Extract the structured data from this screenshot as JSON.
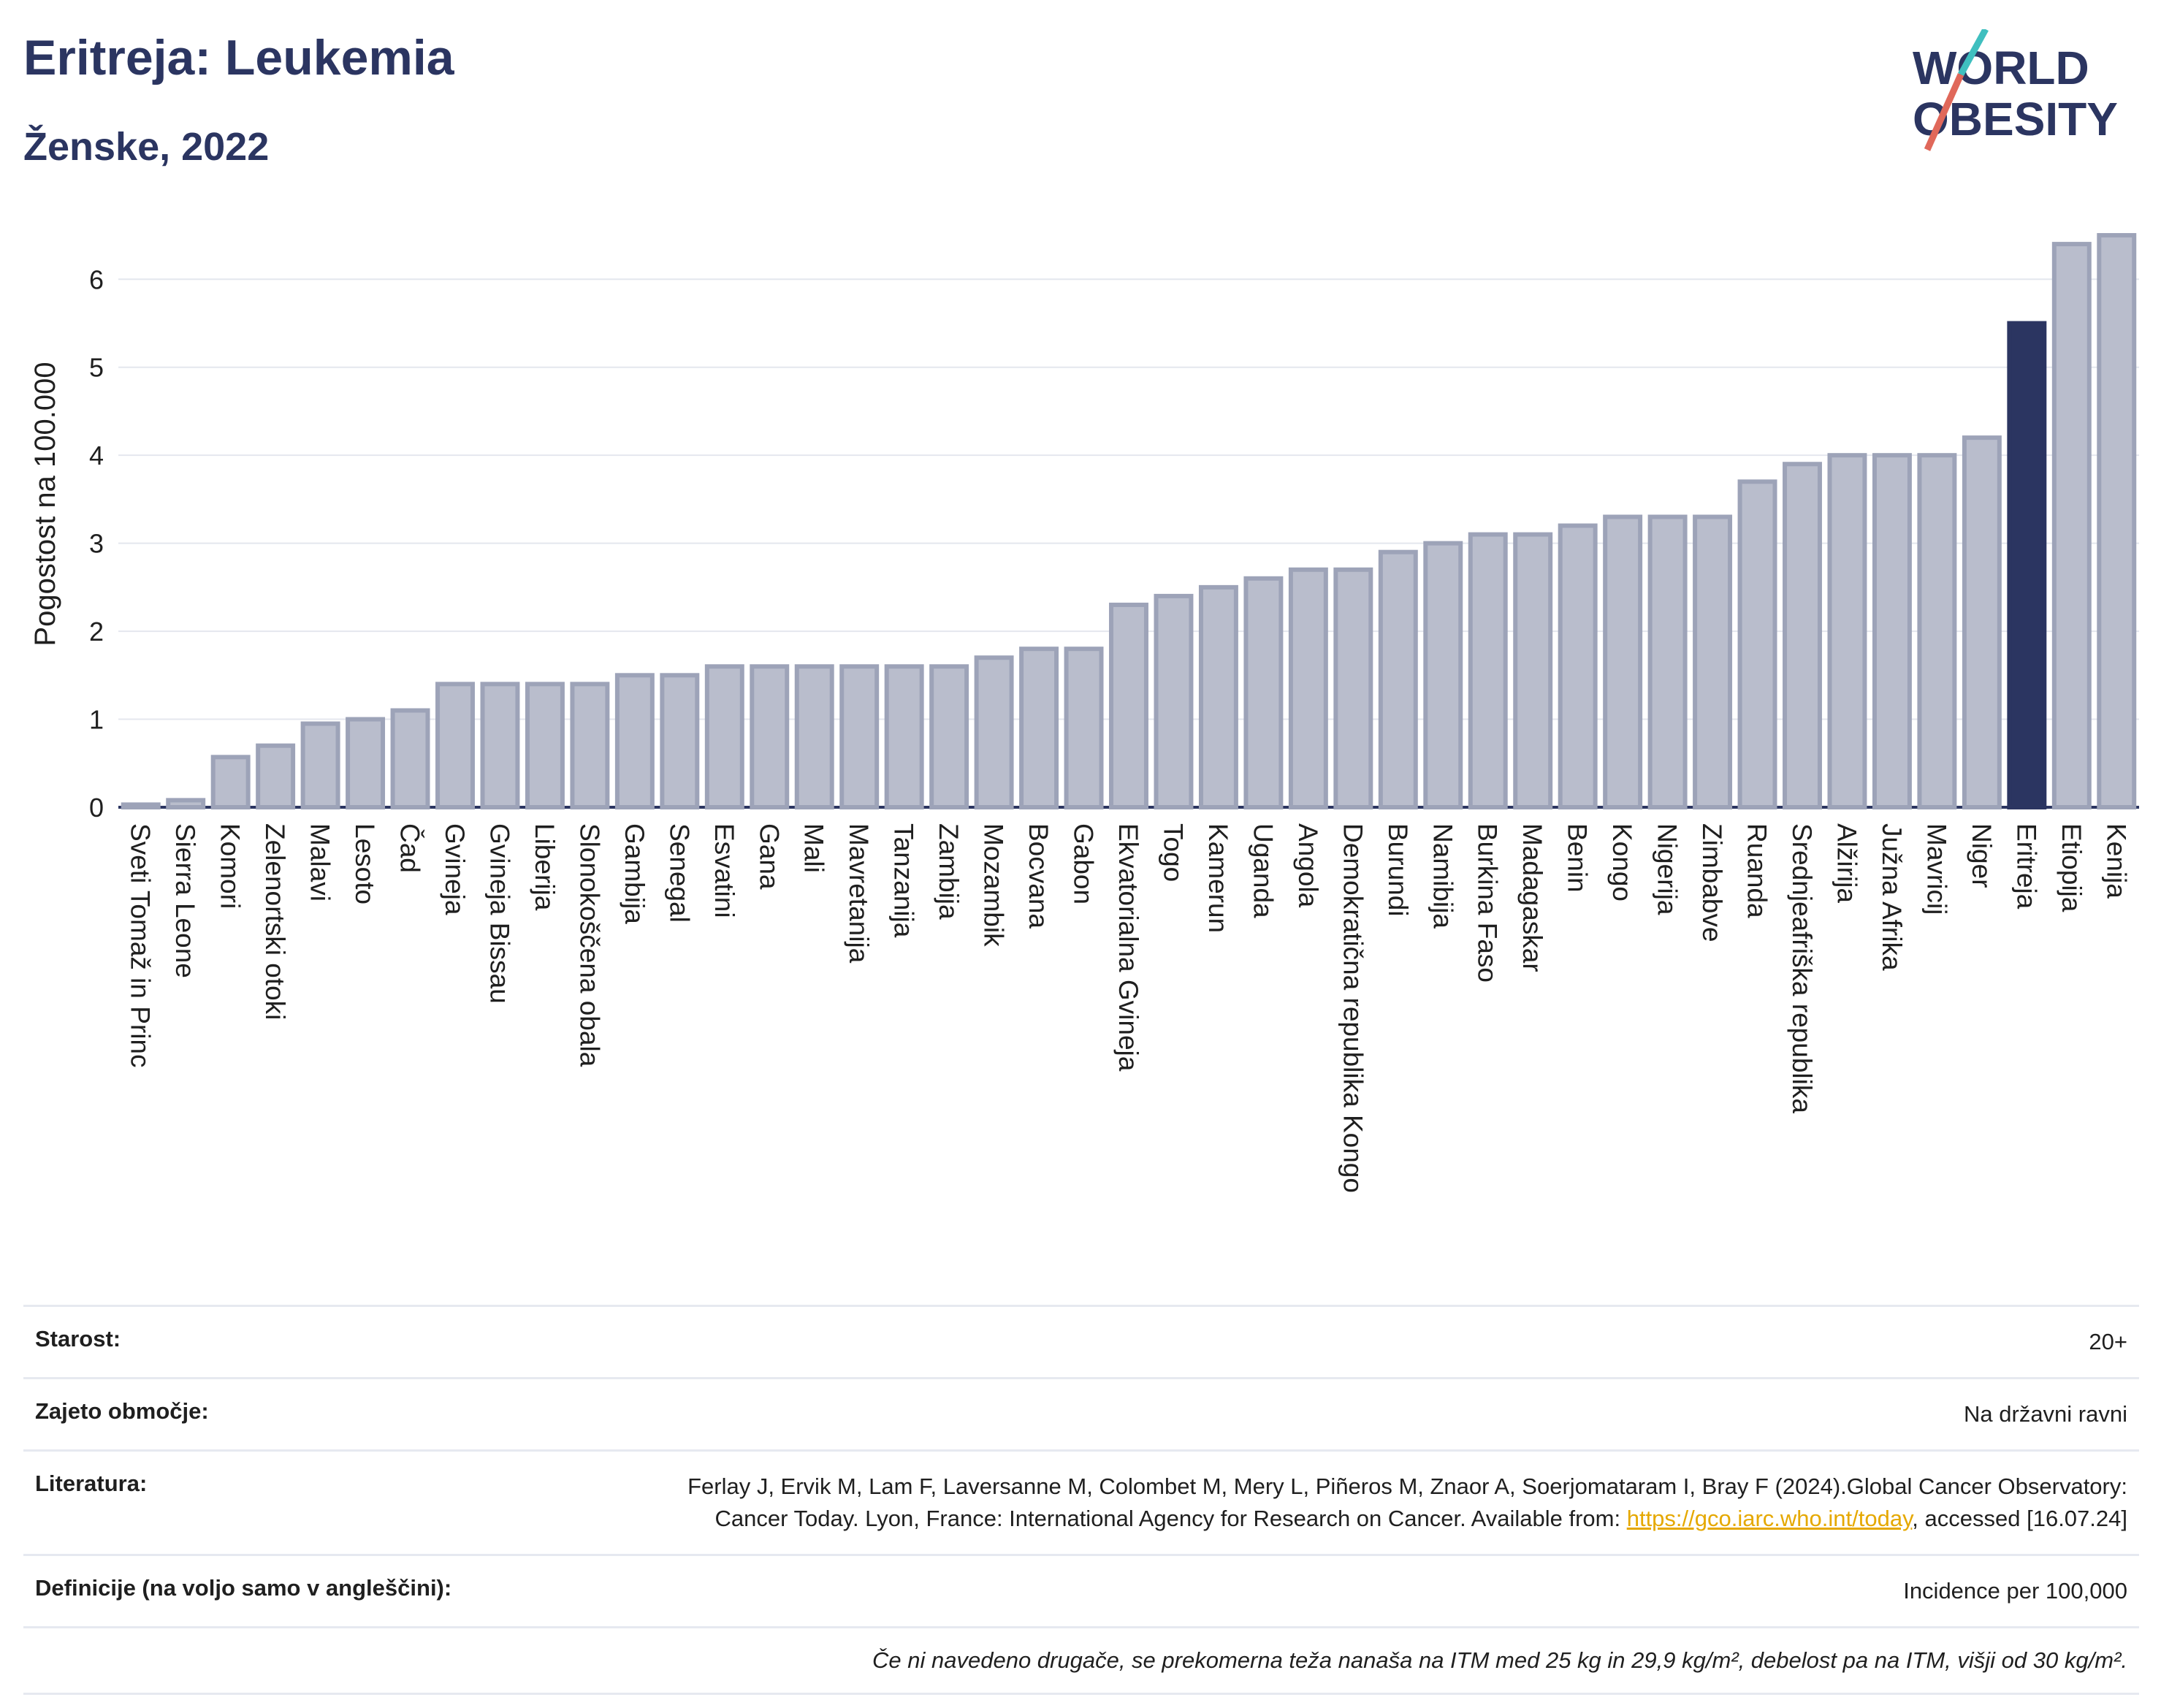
{
  "header": {
    "title": "Eritreja: Leukemia",
    "subtitle": "Ženske, 2022",
    "logo_line1": "WORLD",
    "logo_line2": "OBESITY"
  },
  "colors": {
    "bar_fill": "#b9bdcc",
    "bar_stroke": "#9da3b8",
    "highlight": "#2b3561",
    "grid": "#e4e7ee",
    "logo_teal": "#3fbfbf",
    "logo_coral": "#e0685a"
  },
  "chart_data": {
    "type": "bar",
    "ylabel": "Pogostost na 100.000",
    "ylim": [
      0,
      6.6
    ],
    "yticks": [
      0,
      1,
      2,
      3,
      4,
      5,
      6
    ],
    "grid": true,
    "highlight_category": "Eritreja",
    "categories": [
      "Sveti Tomaž in Princ",
      "Sierra Leone",
      "Komori",
      "Zelenortski otoki",
      "Malavi",
      "Lesoto",
      "Čad",
      "Gvineja",
      "Gvineja Bissau",
      "Liberija",
      "Slonokoščena obala",
      "Gambija",
      "Senegal",
      "Esvatini",
      "Gana",
      "Mali",
      "Mavretanija",
      "Tanzanija",
      "Zambija",
      "Mozambik",
      "Bocvana",
      "Gabon",
      "Ekvatorialna Gvineja",
      "Togo",
      "Kamerun",
      "Uganda",
      "Angola",
      "Demokratična republika Kongo",
      "Burundi",
      "Namibija",
      "Burkina Faso",
      "Madagaskar",
      "Benin",
      "Kongo",
      "Nigerija",
      "Zimbabve",
      "Ruanda",
      "Srednjeafriška republika",
      "Alžirija",
      "Južna Afrika",
      "Mavricij",
      "Niger",
      "Eritreja",
      "Etiopija",
      "Kenija"
    ],
    "values": [
      0.03,
      0.08,
      0.57,
      0.7,
      0.95,
      1.0,
      1.1,
      1.4,
      1.4,
      1.4,
      1.4,
      1.5,
      1.5,
      1.6,
      1.6,
      1.6,
      1.6,
      1.6,
      1.6,
      1.7,
      1.8,
      1.8,
      2.3,
      2.4,
      2.5,
      2.6,
      2.7,
      2.7,
      2.9,
      3.0,
      3.1,
      3.1,
      3.2,
      3.3,
      3.3,
      3.3,
      3.7,
      3.9,
      4.0,
      4.0,
      4.0,
      4.2,
      5.5,
      6.4,
      6.5
    ]
  },
  "info": {
    "age_label": "Starost:",
    "age_value": "20+",
    "area_label": "Zajeto območje:",
    "area_value": "Na državni ravni",
    "lit_label": "Literatura:",
    "lit_text1": "Ferlay J, Ervik M, Lam F, Laversanne M, Colombet M, Mery L, Piñeros M, Znaor A, Soerjomataram I, Bray F (2024).Global Cancer Observatory: Cancer Today. Lyon, France: International Agency for Research on Cancer. Available from: ",
    "lit_link": "https://gco.iarc.who.int/today",
    "lit_text2": ", accessed [16.07.24]",
    "def_label": "Definicije (na voljo samo v angleščini):",
    "def_value": "Incidence per 100,000",
    "footnote": "Če ni navedeno drugače, se prekomerna teža nanaša na ITM med 25 kg in 29,9 kg/m², debelost pa na ITM, višji od 30 kg/m²."
  }
}
